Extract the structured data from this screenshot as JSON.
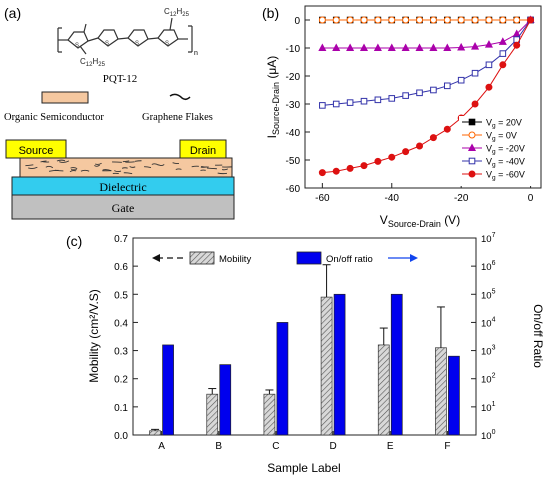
{
  "panel_a": {
    "label": "(a)",
    "molecule": {
      "substituent_top": "C",
      "substituent_top_sub": "12",
      "substituent_top_h": "H",
      "substituent_top_h_sub": "25",
      "substituent_bottom": "C",
      "substituent_bottom_sub": "12",
      "substituent_bottom_h": "H",
      "substituent_bottom_h_sub": "25",
      "repeat": "n",
      "name": "PQT-12"
    },
    "legend": {
      "organic": "Organic Semiconductor",
      "graphene": "Graphene Flakes"
    },
    "device": {
      "source": "Source",
      "drain": "Drain",
      "dielectric": "Dielectric",
      "gate": "Gate"
    },
    "colors": {
      "organic": "#f5c8a0",
      "electrode": "#ffff00",
      "dielectric": "#33ccee",
      "gate": "#c0c0c0"
    }
  },
  "chart_data": [
    {
      "panel": "(b)",
      "type": "line",
      "ylabel": "I",
      "ylabel_sub": "Source-Drain",
      "ylabel_unit": "(μA)",
      "xlabel": "V",
      "xlabel_sub": "Source-Drain",
      "xlabel_unit": "(V)",
      "xlim": [
        -65,
        3
      ],
      "ylim": [
        -60,
        5
      ],
      "xticks": [
        -60,
        -40,
        -20,
        0
      ],
      "yticks": [
        0,
        -10,
        -20,
        -30,
        -40,
        -50,
        -60
      ],
      "legend_position": "bottom-right",
      "x": [
        -60,
        -56,
        -52,
        -48,
        -44,
        -40,
        -36,
        -32,
        -28,
        -24,
        -20,
        -16,
        -12,
        -8,
        -4,
        0
      ],
      "series": [
        {
          "name_pre": "V",
          "name_sub": "g",
          "name_post": " = 20V",
          "color": "#000000",
          "marker": "square-filled",
          "values": [
            0,
            0,
            0,
            0,
            0,
            0,
            0,
            0,
            0,
            0,
            0,
            0,
            0,
            0,
            0,
            0
          ]
        },
        {
          "name_pre": "V",
          "name_sub": "g",
          "name_post": " = 0V",
          "color": "#ff6600",
          "marker": "circle-open",
          "values": [
            0,
            0,
            0,
            0,
            0,
            0,
            0,
            0,
            0,
            0,
            0,
            0,
            0,
            0,
            0,
            0
          ]
        },
        {
          "name_pre": "V",
          "name_sub": "g",
          "name_post": " = -20V",
          "color": "#aa00aa",
          "marker": "triangle-filled",
          "values": [
            -10,
            -10,
            -10,
            -10,
            -10,
            -10,
            -10,
            -10,
            -10,
            -10,
            -9.8,
            -9.5,
            -8.8,
            -7.8,
            -5,
            0
          ]
        },
        {
          "name_pre": "V",
          "name_sub": "g",
          "name_post": " = -40V",
          "color": "#3333aa",
          "marker": "square-open",
          "values": [
            -30.5,
            -30,
            -29.5,
            -29,
            -28.5,
            -28,
            -27,
            -26,
            -25,
            -23.5,
            -21.5,
            -19,
            -16,
            -12,
            -7,
            0
          ]
        },
        {
          "name_pre": "V",
          "name_sub": "g",
          "name_post": " = -60V",
          "color": "#dd1111",
          "marker": "circle-filled",
          "values": [
            -54.5,
            -54,
            -53,
            -52,
            -50.5,
            -49,
            -47,
            -45,
            -42,
            -39,
            -35,
            -30,
            -24,
            -16,
            -9,
            0
          ]
        }
      ]
    },
    {
      "panel": "(c)",
      "type": "bar",
      "xlabel": "Sample Label",
      "ylabel_left": "Mobility (cm²/V.S)",
      "ylabel_right": "On/off Ratio",
      "categories": [
        "A",
        "B",
        "C",
        "D",
        "E",
        "F"
      ],
      "ylim_left": [
        0,
        0.7
      ],
      "yticks_left": [
        "0.0",
        "0.1",
        "0.2",
        "0.3",
        "0.4",
        "0.5",
        "0.6",
        "0.7"
      ],
      "ylim_right_log10": [
        0,
        7
      ],
      "yticks_right_exp": [
        "0",
        "1",
        "2",
        "3",
        "4",
        "5",
        "6",
        "7"
      ],
      "ytick_right_base": "10",
      "legend_position": "top",
      "series": [
        {
          "name": "Mobility",
          "axis": "left",
          "fill": "hatched-gray",
          "values": [
            0.015,
            0.145,
            0.145,
            0.49,
            0.32,
            0.31
          ],
          "errors": [
            0.005,
            0.02,
            0.015,
            0.115,
            0.06,
            0.145
          ]
        },
        {
          "name": "On/off ratio",
          "axis": "right",
          "fill": "#0000ee",
          "values_log10": [
            3.2,
            2.5,
            4.0,
            5.0,
            5.0,
            2.8
          ]
        }
      ]
    }
  ]
}
